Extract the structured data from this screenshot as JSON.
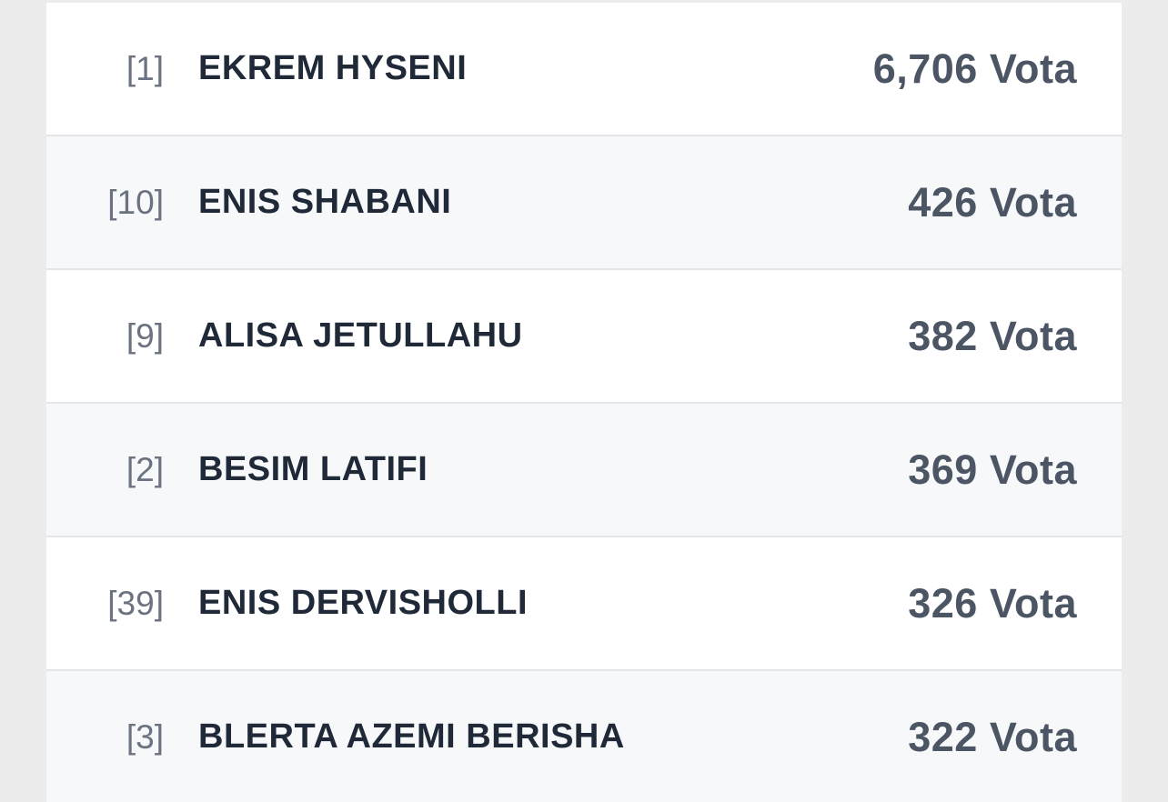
{
  "rows": [
    {
      "number": "[1]",
      "name": "EKREM HYSENI",
      "votes": "6,706 Vota"
    },
    {
      "number": "[10]",
      "name": "ENIS SHABANI",
      "votes": "426 Vota"
    },
    {
      "number": "[9]",
      "name": "ALISA JETULLAHU",
      "votes": "382 Vota"
    },
    {
      "number": "[2]",
      "name": "BESIM LATIFI",
      "votes": "369 Vota"
    },
    {
      "number": "[39]",
      "name": "ENIS DERVISHOLLI",
      "votes": "326 Vota"
    },
    {
      "number": "[3]",
      "name": "BLERTA AZEMI BERISHA",
      "votes": "322 Vota"
    }
  ]
}
